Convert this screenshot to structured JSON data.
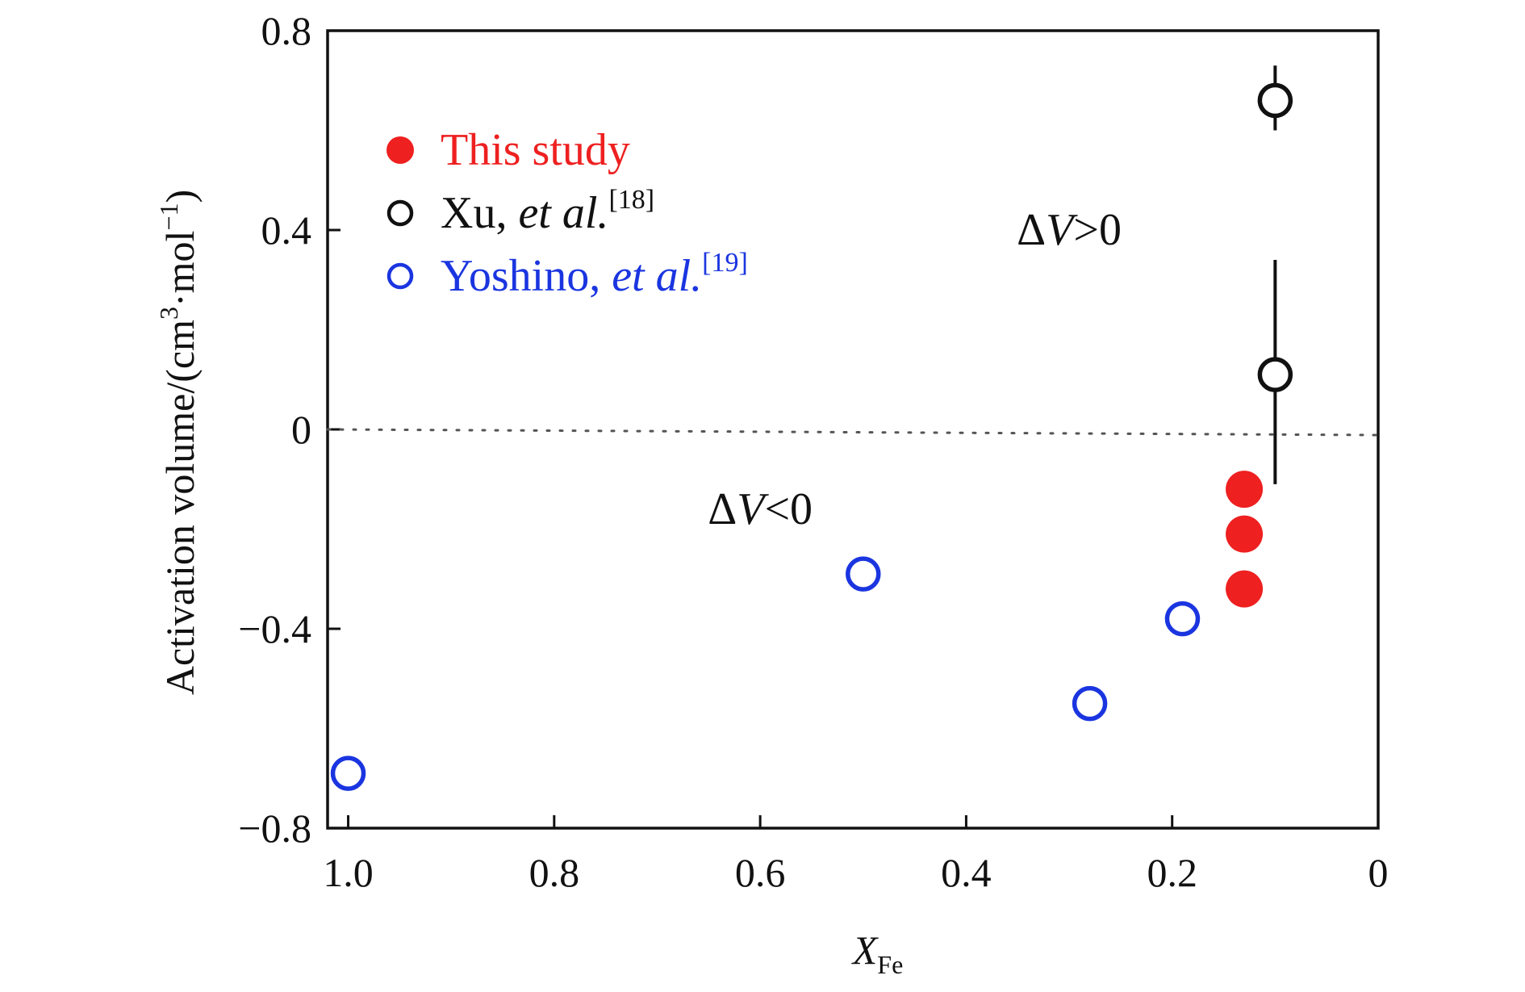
{
  "chart_data": {
    "type": "scatter",
    "xlabel": "X",
    "xlabel_sub": "Fe",
    "ylabel_prefix": "Activation volume/(cm",
    "ylabel_sup1": "3",
    "ylabel_mid": "·mol",
    "ylabel_sup2": "−1",
    "ylabel_suffix": ")",
    "xlim": [
      1.02,
      0.0
    ],
    "ylim": [
      -0.8,
      0.8
    ],
    "x_reversed": true,
    "x_ticks": [
      1.0,
      0.8,
      0.6,
      0.4,
      0.2,
      0.0
    ],
    "x_tick_labels": [
      "1.0",
      "0.8",
      "0.6",
      "0.4",
      "0.2",
      "0"
    ],
    "y_ticks": [
      0.8,
      0.4,
      0.0,
      -0.4,
      -0.8
    ],
    "y_tick_labels": [
      "0.8",
      "0.4",
      "0",
      "−0.4",
      "−0.8"
    ],
    "grid": false,
    "reference_line": {
      "y": 0.0,
      "style": "dotted"
    },
    "legend_position": "top-left",
    "series": [
      {
        "name": "This study",
        "marker": "filled-circle",
        "color": "#ee2020",
        "points": [
          {
            "x": 0.13,
            "y": -0.12
          },
          {
            "x": 0.13,
            "y": -0.21
          },
          {
            "x": 0.13,
            "y": -0.32
          }
        ]
      },
      {
        "name": "Xu, et al.[18]",
        "marker": "open-circle",
        "color": "#111111",
        "points": [
          {
            "x": 0.1,
            "y": 0.66,
            "err_low": 0.6,
            "err_high": 0.73
          },
          {
            "x": 0.1,
            "y": 0.11,
            "err_low": -0.11,
            "err_high": 0.34
          }
        ]
      },
      {
        "name": "Yoshino, et al.[19]",
        "marker": "open-circle",
        "color": "#1a35e0",
        "points": [
          {
            "x": 1.0,
            "y": -0.69
          },
          {
            "x": 0.5,
            "y": -0.29
          },
          {
            "x": 0.28,
            "y": -0.55
          },
          {
            "x": 0.19,
            "y": -0.38
          }
        ]
      }
    ],
    "legend": [
      {
        "plain": "This study",
        "italic": "",
        "sup": ""
      },
      {
        "plain": "Xu, ",
        "italic": "et al.",
        "sup": "[18]"
      },
      {
        "plain": "Yoshino, ",
        "italic": "et al.",
        "sup": "[19]"
      }
    ],
    "annotations": [
      {
        "delta": "Δ",
        "var": "V",
        "rest": ">0",
        "x": 0.3,
        "y": 0.4
      },
      {
        "delta": "Δ",
        "var": "V",
        "rest": "<0",
        "x": 0.6,
        "y": -0.16
      }
    ]
  }
}
